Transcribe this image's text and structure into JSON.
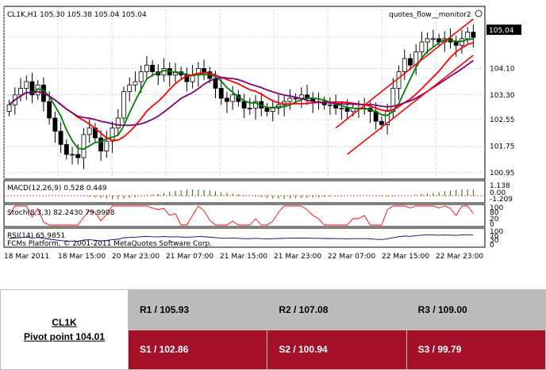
{
  "chart_data": {
    "type": "candlestick",
    "title": "CL1K,H1  105.30 105.38 105.04 105.04",
    "indicator_label": "quotes_flow__monitor2",
    "price_axis": {
      "ticks": [
        "105.04",
        "104.10",
        "103.30",
        "102.55",
        "101.75",
        "100.95"
      ],
      "tick_values": [
        105.04,
        104.1,
        103.3,
        102.55,
        101.75,
        100.95
      ],
      "current_price": "105.04",
      "ylim": [
        100.85,
        105.5
      ]
    },
    "time_axis": {
      "labels": [
        "18 Mar 2011",
        "18 Mar 15:00",
        "20 Mar 23:00",
        "21 Mar 07:00",
        "21 Mar 15:00",
        "21 Mar 23:00",
        "22 Mar 07:00",
        "22 Mar 15:00",
        "22 Mar 23:00"
      ]
    },
    "colors": {
      "bull": "#ffffff",
      "bear": "#000000",
      "ma_fast": "#008000",
      "ma_mid": "#ff0000",
      "ma_slow": "#800080",
      "channel": "#ff0000"
    },
    "closes": [
      103.0,
      103.3,
      103.5,
      103.7,
      103.3,
      103.6,
      103.1,
      102.6,
      102.2,
      101.8,
      101.5,
      101.5,
      101.4,
      102.1,
      102.3,
      102.0,
      101.6,
      101.9,
      102.3,
      102.6,
      103.4,
      103.6,
      103.7,
      104.0,
      104.2,
      104.0,
      103.9,
      104.1,
      103.9,
      104.0,
      103.9,
      103.7,
      103.9,
      104.1,
      104.0,
      103.8,
      103.5,
      103.2,
      103.1,
      103.3,
      103.1,
      102.9,
      102.9,
      103.1,
      102.9,
      102.8,
      102.9,
      103.0,
      103.1,
      103.2,
      103.2,
      103.3,
      103.2,
      103.1,
      103.1,
      103.0,
      103.0,
      102.9,
      102.9,
      102.8,
      102.9,
      102.9,
      102.9,
      102.8,
      102.5,
      102.4,
      102.8,
      103.5,
      104.0,
      104.4,
      104.2,
      104.6,
      104.9,
      105.0,
      105.0,
      104.9,
      105.0,
      104.9,
      104.8,
      105.0,
      105.2,
      105.04
    ],
    "macd": {
      "label": "MACD(12,26,9)  0.528  0.449",
      "scale_labels": [
        "1.138",
        "0.00",
        "-1.209"
      ]
    },
    "stoch": {
      "label": "Stoch(8,3,3)  82.2430  79.9908",
      "scale_labels": [
        "100",
        "80",
        "20",
        "0"
      ]
    },
    "rsi": {
      "label": "RSI(14)  65.9851",
      "scale_labels": [
        "100",
        "70",
        "30",
        "0"
      ]
    },
    "watermark": "FCMs Platform, © 2001-2011 MetaQuotes Software Corp."
  },
  "pivot_table": {
    "symbol": "CL1K",
    "pivot_label": "Pivot point 104.01",
    "resistance": [
      "R1 / 105.93",
      "R2  / 107.08",
      "R3 / 109.00"
    ],
    "support": [
      "S1 / 102.86",
      "S2 /  100.94",
      "S3 /  99.79"
    ]
  }
}
